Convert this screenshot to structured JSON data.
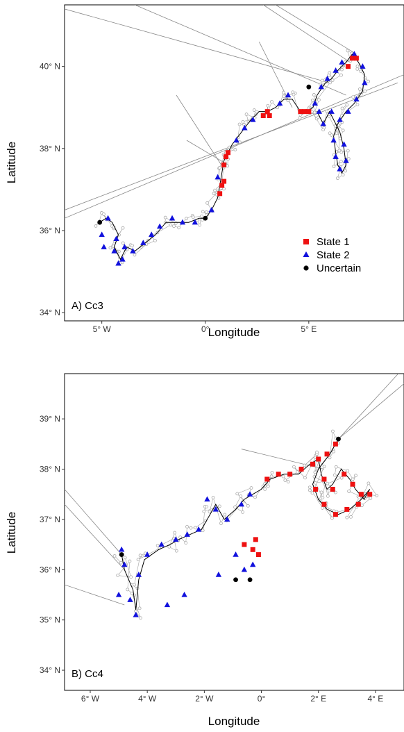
{
  "colors": {
    "state1": "#ee1111",
    "state2": "#1111dd",
    "uncertain": "#000000",
    "track_raw": "#888888",
    "track_fit": "#000000",
    "obs_point": "#aaaaaa"
  },
  "legend": {
    "position": "inside-bottom-right of panel A",
    "items": [
      {
        "label": "State 1",
        "shape": "square",
        "color": "#ee1111"
      },
      {
        "label": "State 2",
        "shape": "triangle",
        "color": "#1111dd"
      },
      {
        "label": "Uncertain",
        "shape": "circle",
        "color": "#000000"
      }
    ]
  },
  "chart_data": [
    {
      "type": "scatter",
      "panel_label": "A) Cc3",
      "xlabel": "Longitude",
      "ylabel": "Latitude",
      "xlim": [
        -6.8,
        9.6
      ],
      "ylim": [
        33.8,
        41.5
      ],
      "x_ticks": [
        {
          "value": -5,
          "label": "5° W"
        },
        {
          "value": 0,
          "label": "0°"
        },
        {
          "value": 5,
          "label": "5° E"
        }
      ],
      "y_ticks": [
        {
          "value": 34,
          "label": "34° N"
        },
        {
          "value": 36,
          "label": "36° N"
        },
        {
          "value": 38,
          "label": "38° N"
        },
        {
          "value": 40,
          "label": "40° N"
        }
      ],
      "track": [
        [
          -5.1,
          36.2
        ],
        [
          -4.8,
          36.3
        ],
        [
          -4.5,
          36.2
        ],
        [
          -4.2,
          35.9
        ],
        [
          -4.4,
          35.6
        ],
        [
          -4.1,
          35.3
        ],
        [
          -3.8,
          35.6
        ],
        [
          -3.4,
          35.5
        ],
        [
          -2.9,
          35.7
        ],
        [
          -2.4,
          35.9
        ],
        [
          -1.9,
          36.2
        ],
        [
          -1.4,
          36.2
        ],
        [
          -0.8,
          36.2
        ],
        [
          -0.3,
          36.3
        ],
        [
          0.0,
          36.3
        ],
        [
          0.3,
          36.5
        ],
        [
          0.6,
          36.8
        ],
        [
          0.7,
          37.1
        ],
        [
          0.8,
          37.4
        ],
        [
          0.9,
          37.7
        ],
        [
          1.1,
          37.9
        ],
        [
          1.3,
          38.1
        ],
        [
          1.6,
          38.3
        ],
        [
          1.9,
          38.5
        ],
        [
          2.2,
          38.7
        ],
        [
          2.6,
          38.9
        ],
        [
          3.0,
          38.9
        ],
        [
          3.4,
          39.0
        ],
        [
          3.8,
          39.2
        ],
        [
          4.2,
          39.2
        ],
        [
          4.6,
          38.9
        ],
        [
          4.9,
          38.9
        ],
        [
          5.2,
          39.0
        ],
        [
          5.4,
          39.3
        ],
        [
          5.8,
          39.6
        ],
        [
          6.1,
          39.7
        ],
        [
          6.4,
          39.9
        ],
        [
          6.8,
          40.1
        ],
        [
          7.1,
          40.3
        ],
        [
          7.4,
          40.1
        ],
        [
          7.7,
          39.8
        ],
        [
          7.6,
          39.4
        ],
        [
          7.2,
          39.1
        ],
        [
          6.8,
          38.9
        ],
        [
          6.4,
          38.6
        ],
        [
          6.2,
          38.3
        ],
        [
          6.3,
          37.9
        ],
        [
          6.4,
          37.6
        ],
        [
          6.6,
          37.4
        ],
        [
          6.8,
          37.6
        ],
        [
          6.7,
          38.0
        ],
        [
          6.5,
          38.4
        ],
        [
          6.0,
          38.9
        ],
        [
          5.7,
          38.6
        ],
        [
          5.4,
          38.9
        ]
      ],
      "points": [
        {
          "state": 2,
          "x": -5.0,
          "y": 35.9
        },
        {
          "state": 2,
          "x": -4.9,
          "y": 35.6
        },
        {
          "state": 2,
          "x": -4.7,
          "y": 36.3
        },
        {
          "state": 2,
          "x": -4.4,
          "y": 35.5
        },
        {
          "state": 2,
          "x": -4.3,
          "y": 35.8
        },
        {
          "state": 2,
          "x": -4.2,
          "y": 35.2
        },
        {
          "state": 2,
          "x": -4.0,
          "y": 35.3
        },
        {
          "state": 2,
          "x": -3.9,
          "y": 35.6
        },
        {
          "state": 2,
          "x": -3.5,
          "y": 35.5
        },
        {
          "state": 2,
          "x": -3.0,
          "y": 35.7
        },
        {
          "state": 2,
          "x": -2.6,
          "y": 35.9
        },
        {
          "state": 2,
          "x": -2.2,
          "y": 36.1
        },
        {
          "state": 2,
          "x": -1.6,
          "y": 36.3
        },
        {
          "state": 2,
          "x": -1.1,
          "y": 36.2
        },
        {
          "state": 2,
          "x": -0.5,
          "y": 36.2
        },
        {
          "state": 2,
          "x": 0.3,
          "y": 36.5
        },
        {
          "state": 2,
          "x": 0.6,
          "y": 37.3
        },
        {
          "state": 2,
          "x": 1.5,
          "y": 38.2
        },
        {
          "state": 2,
          "x": 1.9,
          "y": 38.5
        },
        {
          "state": 2,
          "x": 2.3,
          "y": 38.7
        },
        {
          "state": 2,
          "x": 3.6,
          "y": 39.1
        },
        {
          "state": 2,
          "x": 4.0,
          "y": 39.3
        },
        {
          "state": 2,
          "x": 5.3,
          "y": 39.1
        },
        {
          "state": 2,
          "x": 5.6,
          "y": 39.5
        },
        {
          "state": 2,
          "x": 5.9,
          "y": 39.7
        },
        {
          "state": 2,
          "x": 6.3,
          "y": 39.9
        },
        {
          "state": 2,
          "x": 6.6,
          "y": 40.1
        },
        {
          "state": 2,
          "x": 7.2,
          "y": 40.3
        },
        {
          "state": 2,
          "x": 7.6,
          "y": 40.0
        },
        {
          "state": 2,
          "x": 7.7,
          "y": 39.6
        },
        {
          "state": 2,
          "x": 7.3,
          "y": 39.2
        },
        {
          "state": 2,
          "x": 6.9,
          "y": 38.9
        },
        {
          "state": 2,
          "x": 6.5,
          "y": 38.7
        },
        {
          "state": 2,
          "x": 6.2,
          "y": 38.2
        },
        {
          "state": 2,
          "x": 6.3,
          "y": 37.8
        },
        {
          "state": 2,
          "x": 6.5,
          "y": 37.5
        },
        {
          "state": 2,
          "x": 6.8,
          "y": 37.7
        },
        {
          "state": 2,
          "x": 6.7,
          "y": 38.1
        },
        {
          "state": 2,
          "x": 6.1,
          "y": 38.9
        },
        {
          "state": 2,
          "x": 5.7,
          "y": 38.6
        },
        {
          "state": 2,
          "x": 5.5,
          "y": 38.9
        },
        {
          "state": 1,
          "x": 0.7,
          "y": 36.9
        },
        {
          "state": 1,
          "x": 0.8,
          "y": 37.1
        },
        {
          "state": 1,
          "x": 0.9,
          "y": 37.2
        },
        {
          "state": 1,
          "x": 0.9,
          "y": 37.6
        },
        {
          "state": 1,
          "x": 1.0,
          "y": 37.8
        },
        {
          "state": 1,
          "x": 1.1,
          "y": 37.9
        },
        {
          "state": 1,
          "x": 2.8,
          "y": 38.8
        },
        {
          "state": 1,
          "x": 3.0,
          "y": 38.9
        },
        {
          "state": 1,
          "x": 3.1,
          "y": 38.8
        },
        {
          "state": 1,
          "x": 4.6,
          "y": 38.9
        },
        {
          "state": 1,
          "x": 4.8,
          "y": 38.9
        },
        {
          "state": 1,
          "x": 5.0,
          "y": 38.9
        },
        {
          "state": 1,
          "x": 6.9,
          "y": 40.0
        },
        {
          "state": 1,
          "x": 7.1,
          "y": 40.2
        },
        {
          "state": 1,
          "x": 7.3,
          "y": 40.2
        },
        {
          "state": 0,
          "x": -5.1,
          "y": 36.2
        },
        {
          "state": 0,
          "x": 0.0,
          "y": 36.3
        },
        {
          "state": 0,
          "x": 5.0,
          "y": 39.5
        }
      ],
      "outliers": [
        [
          [
            -6.8,
            41.4
          ],
          [
            6.0,
            39.6
          ]
        ],
        [
          [
            -3.4,
            41.5
          ],
          [
            6.8,
            39.3
          ]
        ],
        [
          [
            -6.8,
            36.5
          ],
          [
            9.3,
            39.6
          ]
        ],
        [
          [
            -6.8,
            36.3
          ],
          [
            9.6,
            39.8
          ]
        ],
        [
          [
            2.8,
            41.5
          ],
          [
            7.0,
            40.1
          ]
        ],
        [
          [
            3.4,
            41.5
          ],
          [
            7.3,
            40.3
          ]
        ],
        [
          [
            -1.4,
            39.3
          ],
          [
            0.9,
            37.5
          ]
        ],
        [
          [
            -0.9,
            38.2
          ],
          [
            1.1,
            37.6
          ]
        ],
        [
          [
            2.6,
            40.6
          ],
          [
            4.2,
            39.0
          ]
        ]
      ]
    },
    {
      "type": "scatter",
      "panel_label": "B) Cc4",
      "xlabel": "Longitude",
      "ylabel": "Latitude",
      "xlim": [
        -6.9,
        5.0
      ],
      "ylim": [
        33.6,
        39.9
      ],
      "x_ticks": [
        {
          "value": -6,
          "label": "6° W"
        },
        {
          "value": -4,
          "label": "4° W"
        },
        {
          "value": -2,
          "label": "2° W"
        },
        {
          "value": 0,
          "label": "0°"
        },
        {
          "value": 2,
          "label": "2° E"
        },
        {
          "value": 4,
          "label": "4° E"
        }
      ],
      "y_ticks": [
        {
          "value": 34,
          "label": "34° N"
        },
        {
          "value": 35,
          "label": "35° N"
        },
        {
          "value": 36,
          "label": "36° N"
        },
        {
          "value": 37,
          "label": "37° N"
        },
        {
          "value": 38,
          "label": "38° N"
        },
        {
          "value": 39,
          "label": "39° N"
        }
      ],
      "track": [
        [
          -4.9,
          36.3
        ],
        [
          -4.8,
          36.0
        ],
        [
          -4.5,
          35.6
        ],
        [
          -4.4,
          35.2
        ],
        [
          -4.3,
          35.8
        ],
        [
          -4.1,
          36.2
        ],
        [
          -3.6,
          36.4
        ],
        [
          -3.2,
          36.5
        ],
        [
          -2.9,
          36.6
        ],
        [
          -2.5,
          36.7
        ],
        [
          -2.1,
          36.8
        ],
        [
          -1.8,
          37.1
        ],
        [
          -1.6,
          37.3
        ],
        [
          -1.3,
          37.0
        ],
        [
          -0.9,
          37.2
        ],
        [
          -0.6,
          37.4
        ],
        [
          -0.3,
          37.5
        ],
        [
          0.0,
          37.6
        ],
        [
          0.3,
          37.8
        ],
        [
          0.8,
          37.9
        ],
        [
          1.3,
          37.9
        ],
        [
          1.7,
          38.1
        ],
        [
          2.0,
          38.2
        ],
        [
          2.1,
          37.9
        ],
        [
          2.3,
          37.6
        ],
        [
          2.5,
          37.7
        ],
        [
          2.8,
          38.0
        ],
        [
          3.1,
          37.8
        ],
        [
          3.3,
          37.6
        ],
        [
          3.6,
          37.4
        ],
        [
          3.8,
          37.6
        ],
        [
          3.5,
          37.4
        ],
        [
          3.1,
          37.2
        ],
        [
          2.7,
          37.1
        ],
        [
          2.3,
          37.2
        ],
        [
          2.0,
          37.4
        ],
        [
          1.8,
          37.7
        ],
        [
          2.0,
          38.0
        ],
        [
          2.4,
          38.3
        ],
        [
          2.7,
          38.6
        ]
      ],
      "points": [
        {
          "state": 2,
          "x": -5.0,
          "y": 35.5
        },
        {
          "state": 2,
          "x": -4.9,
          "y": 36.4
        },
        {
          "state": 2,
          "x": -4.8,
          "y": 36.1
        },
        {
          "state": 2,
          "x": -4.6,
          "y": 35.4
        },
        {
          "state": 2,
          "x": -4.4,
          "y": 35.1
        },
        {
          "state": 2,
          "x": -4.3,
          "y": 35.9
        },
        {
          "state": 2,
          "x": -4.0,
          "y": 36.3
        },
        {
          "state": 2,
          "x": -3.5,
          "y": 36.5
        },
        {
          "state": 2,
          "x": -3.0,
          "y": 36.6
        },
        {
          "state": 2,
          "x": -2.6,
          "y": 36.7
        },
        {
          "state": 2,
          "x": -2.2,
          "y": 36.8
        },
        {
          "state": 2,
          "x": -1.9,
          "y": 37.4
        },
        {
          "state": 2,
          "x": -1.6,
          "y": 37.2
        },
        {
          "state": 2,
          "x": -1.2,
          "y": 37.0
        },
        {
          "state": 2,
          "x": -0.7,
          "y": 37.3
        },
        {
          "state": 2,
          "x": -0.4,
          "y": 37.5
        },
        {
          "state": 2,
          "x": -3.3,
          "y": 35.3
        },
        {
          "state": 2,
          "x": -2.7,
          "y": 35.5
        },
        {
          "state": 2,
          "x": -1.5,
          "y": 35.9
        },
        {
          "state": 2,
          "x": -0.9,
          "y": 36.3
        },
        {
          "state": 2,
          "x": -0.6,
          "y": 36.0
        },
        {
          "state": 2,
          "x": -0.3,
          "y": 36.1
        },
        {
          "state": 1,
          "x": 0.2,
          "y": 37.8
        },
        {
          "state": 1,
          "x": 0.6,
          "y": 37.9
        },
        {
          "state": 1,
          "x": 1.0,
          "y": 37.9
        },
        {
          "state": 1,
          "x": 1.4,
          "y": 38.0
        },
        {
          "state": 1,
          "x": 1.8,
          "y": 38.1
        },
        {
          "state": 1,
          "x": 2.0,
          "y": 38.2
        },
        {
          "state": 1,
          "x": 2.2,
          "y": 37.8
        },
        {
          "state": 1,
          "x": 2.5,
          "y": 37.6
        },
        {
          "state": 1,
          "x": 2.9,
          "y": 37.9
        },
        {
          "state": 1,
          "x": 3.2,
          "y": 37.7
        },
        {
          "state": 1,
          "x": 3.5,
          "y": 37.5
        },
        {
          "state": 1,
          "x": 3.8,
          "y": 37.5
        },
        {
          "state": 1,
          "x": 3.4,
          "y": 37.3
        },
        {
          "state": 1,
          "x": 3.0,
          "y": 37.2
        },
        {
          "state": 1,
          "x": 2.6,
          "y": 37.1
        },
        {
          "state": 1,
          "x": 2.2,
          "y": 37.3
        },
        {
          "state": 1,
          "x": 1.9,
          "y": 37.6
        },
        {
          "state": 1,
          "x": 2.3,
          "y": 38.3
        },
        {
          "state": 1,
          "x": 2.6,
          "y": 38.5
        },
        {
          "state": 1,
          "x": -0.6,
          "y": 36.5
        },
        {
          "state": 1,
          "x": -0.3,
          "y": 36.4
        },
        {
          "state": 1,
          "x": -0.1,
          "y": 36.3
        },
        {
          "state": 1,
          "x": -0.2,
          "y": 36.6
        },
        {
          "state": 0,
          "x": -4.9,
          "y": 36.3
        },
        {
          "state": 0,
          "x": -0.9,
          "y": 35.8
        },
        {
          "state": 0,
          "x": -0.4,
          "y": 35.8
        },
        {
          "state": 0,
          "x": 2.7,
          "y": 38.6
        }
      ],
      "outliers": [
        [
          [
            2.7,
            38.6
          ],
          [
            4.8,
            39.9
          ]
        ],
        [
          [
            2.7,
            38.6
          ],
          [
            5.0,
            39.7
          ]
        ],
        [
          [
            -6.9,
            37.6
          ],
          [
            -4.9,
            36.3
          ]
        ],
        [
          [
            -6.9,
            37.3
          ],
          [
            -4.8,
            36.0
          ]
        ],
        [
          [
            -6.9,
            35.7
          ],
          [
            -4.8,
            35.3
          ]
        ],
        [
          [
            -0.7,
            38.4
          ],
          [
            2.2,
            38.0
          ]
        ]
      ]
    }
  ]
}
